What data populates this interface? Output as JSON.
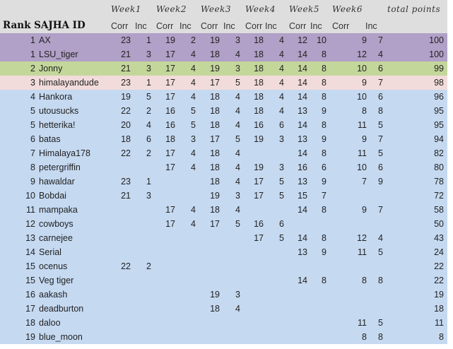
{
  "header": {
    "weeks": [
      "Week1",
      "Week2",
      "Week3",
      "Week4",
      "Week5",
      "Week6"
    ],
    "total_label": "total points",
    "rank_id_label": "Rank SAJHA ID",
    "sub_labels": [
      "Corr",
      "Inc",
      "Corr",
      "Inc",
      "Corr",
      "Inc",
      "Corr",
      "Inc",
      "Corr",
      "Inc",
      "Corr",
      "Inc"
    ]
  },
  "colors": {
    "first": "#b1a0c7",
    "second": "#c4d79b",
    "third": "#f2dcdb",
    "others": "#c5d9f1",
    "header": "#dedede"
  },
  "rows": [
    {
      "rank": "1",
      "id": "AX",
      "scores": [
        "23",
        "1",
        "19",
        "2",
        "19",
        "3",
        "18",
        "4",
        "12",
        "10",
        "9",
        "7"
      ],
      "total": "100",
      "tier": "first"
    },
    {
      "rank": "1",
      "id": "LSU_tiger",
      "scores": [
        "21",
        "3",
        "17",
        "4",
        "18",
        "4",
        "18",
        "4",
        "14",
        "8",
        "12",
        "4"
      ],
      "total": "100",
      "tier": "first"
    },
    {
      "rank": "2",
      "id": "Jonny",
      "scores": [
        "21",
        "3",
        "17",
        "4",
        "19",
        "3",
        "18",
        "4",
        "14",
        "8",
        "10",
        "6"
      ],
      "total": "99",
      "tier": "second"
    },
    {
      "rank": "3",
      "id": "himalayandude",
      "scores": [
        "23",
        "1",
        "17",
        "4",
        "17",
        "5",
        "18",
        "4",
        "14",
        "8",
        "9",
        "7"
      ],
      "total": "98",
      "tier": "third"
    },
    {
      "rank": "4",
      "id": "Hankora",
      "scores": [
        "19",
        "5",
        "17",
        "4",
        "18",
        "4",
        "18",
        "4",
        "14",
        "8",
        "10",
        "6"
      ],
      "total": "96",
      "tier": "others"
    },
    {
      "rank": "5",
      "id": "utousucks",
      "scores": [
        "22",
        "2",
        "16",
        "5",
        "18",
        "4",
        "18",
        "4",
        "13",
        "9",
        "8",
        "8"
      ],
      "total": "95",
      "tier": "others"
    },
    {
      "rank": "5",
      "id": "hetterika!",
      "scores": [
        "20",
        "4",
        "16",
        "5",
        "18",
        "4",
        "16",
        "6",
        "14",
        "8",
        "11",
        "5"
      ],
      "total": "95",
      "tier": "others"
    },
    {
      "rank": "6",
      "id": "batas",
      "scores": [
        "18",
        "6",
        "18",
        "3",
        "17",
        "5",
        "19",
        "3",
        "13",
        "9",
        "9",
        "7"
      ],
      "total": "94",
      "tier": "others"
    },
    {
      "rank": "7",
      "id": "Himalaya178",
      "scores": [
        "22",
        "2",
        "17",
        "4",
        "18",
        "4",
        "",
        "",
        "14",
        "8",
        "11",
        "5"
      ],
      "total": "82",
      "tier": "others"
    },
    {
      "rank": "8",
      "id": "petergriffin",
      "scores": [
        "",
        "",
        "17",
        "4",
        "18",
        "4",
        "19",
        "3",
        "16",
        "6",
        "10",
        "6"
      ],
      "total": "80",
      "tier": "others"
    },
    {
      "rank": "9",
      "id": "hawaldar",
      "scores": [
        "23",
        "1",
        "",
        "",
        "18",
        "4",
        "17",
        "5",
        "13",
        "9",
        "7",
        "9"
      ],
      "total": "78",
      "tier": "others"
    },
    {
      "rank": "10",
      "id": "Bobdai",
      "scores": [
        "21",
        "3",
        "",
        "",
        "19",
        "3",
        "17",
        "5",
        "15",
        "7",
        "",
        ""
      ],
      "total": "72",
      "tier": "others"
    },
    {
      "rank": "11",
      "id": "mampaka",
      "scores": [
        "",
        "",
        "17",
        "4",
        "18",
        "4",
        "",
        "",
        "14",
        "8",
        "9",
        "7"
      ],
      "total": "58",
      "tier": "others"
    },
    {
      "rank": "12",
      "id": "cowboys",
      "scores": [
        "",
        "",
        "17",
        "4",
        "17",
        "5",
        "16",
        "6",
        "",
        "",
        "",
        ""
      ],
      "total": "50",
      "tier": "others"
    },
    {
      "rank": "13",
      "id": "carnejee",
      "scores": [
        "",
        "",
        "",
        "",
        "",
        "",
        "17",
        "5",
        "14",
        "8",
        "12",
        "4"
      ],
      "total": "43",
      "tier": "others"
    },
    {
      "rank": "14",
      "id": "Serial",
      "scores": [
        "",
        "",
        "",
        "",
        "",
        "",
        "",
        "",
        "13",
        "9",
        "11",
        "5"
      ],
      "total": "24",
      "tier": "others"
    },
    {
      "rank": "15",
      "id": "ocenus",
      "scores": [
        "22",
        "2",
        "",
        "",
        "",
        "",
        "",
        "",
        "",
        "",
        "",
        ""
      ],
      "total": "22",
      "tier": "others"
    },
    {
      "rank": "15",
      "id": "Veg tiger",
      "scores": [
        "",
        "",
        "",
        "",
        "",
        "",
        "",
        "",
        "14",
        "8",
        "8",
        "8"
      ],
      "total": "22",
      "tier": "others"
    },
    {
      "rank": "16",
      "id": "aakash",
      "scores": [
        "",
        "",
        "",
        "",
        "19",
        "3",
        "",
        "",
        "",
        "",
        "",
        ""
      ],
      "total": "19",
      "tier": "others"
    },
    {
      "rank": "17",
      "id": "deadburton",
      "scores": [
        "",
        "",
        "",
        "",
        "18",
        "4",
        "",
        "",
        "",
        "",
        "",
        ""
      ],
      "total": "18",
      "tier": "others"
    },
    {
      "rank": "18",
      "id": "daloo",
      "scores": [
        "",
        "",
        "",
        "",
        "",
        "",
        "",
        "",
        "",
        "",
        "11",
        "5"
      ],
      "total": "11",
      "tier": "others"
    },
    {
      "rank": "19",
      "id": "blue_moon",
      "scores": [
        "",
        "",
        "",
        "",
        "",
        "",
        "",
        "",
        "",
        "",
        "8",
        "8"
      ],
      "total": "8",
      "tier": "others"
    }
  ]
}
